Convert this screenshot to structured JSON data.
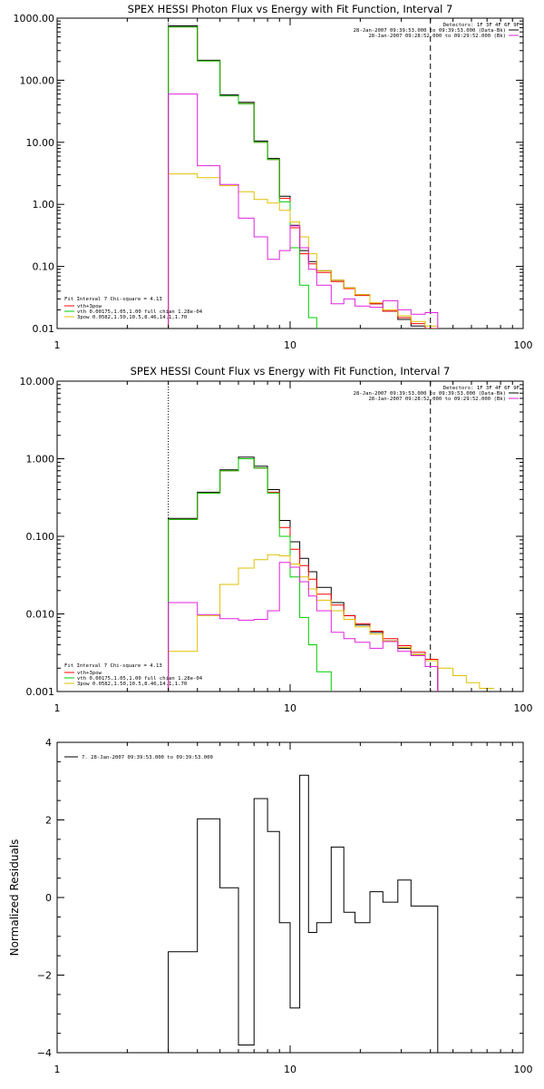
{
  "chart_data": [
    {
      "type": "line",
      "scale": "log-log",
      "title": "SPEX HESSI Photon Flux vs Energy with Fit Function, Interval 7",
      "xlim": [
        1,
        100
      ],
      "ylim": [
        0.01,
        1000
      ],
      "x_ticks": [
        "1",
        "10",
        "100"
      ],
      "y_ticks": [
        "0.01",
        "0.10",
        "1.00",
        "10.00",
        "100.00",
        "1000.00"
      ],
      "vlines": {
        "dotted": 3,
        "dashed": 40
      },
      "header_lines": [
        "Detectors: 1F 3F 4F 6F 9F",
        "28-Jan-2007 09:39:53.000 to 09:39:53.000 (Data-Bk)",
        "28-Jan-2007 09:28:52.000 to 09:29:52.000 (Bk)"
      ],
      "fit_lines": [
        "Fit Interval 7   Chi-square = 4.13",
        "vth+3pow",
        "vth 0.00175,1.05,1.00  full chian 1.28e-04",
        "3pow 0.0582,1.50,10.5,8.46,14.1,1.70"
      ],
      "edges": [
        3,
        4,
        5,
        6,
        7,
        8,
        9,
        10,
        11,
        12,
        13,
        15,
        17,
        19,
        22,
        25,
        29,
        33,
        38,
        43,
        50
      ],
      "series": [
        {
          "key": "data",
          "color": "#000000",
          "values": [
            750,
            210,
            58,
            44,
            10.5,
            5.5,
            1.35,
            0.46,
            0.18,
            0.12,
            0.085,
            0.06,
            0.045,
            0.035,
            0.025,
            0.019,
            0.014,
            0.011,
            0.009,
            null
          ]
        },
        {
          "key": "total",
          "color": "#ff0000",
          "values": [
            720,
            205,
            56,
            42,
            10,
            5.3,
            1.25,
            0.42,
            0.16,
            0.11,
            0.08,
            0.057,
            0.044,
            0.034,
            0.025,
            0.019,
            0.015,
            0.012,
            0.01,
            null
          ]
        },
        {
          "key": "vth",
          "color": "#00cc00",
          "values": [
            720,
            205,
            56,
            42,
            10,
            5.3,
            1.1,
            0.2,
            0.05,
            0.015,
            null,
            null,
            null,
            null,
            null,
            null,
            null,
            null,
            null,
            null
          ]
        },
        {
          "key": "3pow",
          "color": "#e0c000",
          "values": [
            3.1,
            2.7,
            2.0,
            1.6,
            1.2,
            1.05,
            0.8,
            0.52,
            0.3,
            0.16,
            0.085,
            0.06,
            0.045,
            0.035,
            0.026,
            0.02,
            0.016,
            0.013,
            0.011,
            0.009
          ]
        },
        {
          "key": "bk",
          "color": "#e020e0",
          "values": [
            60,
            4.2,
            2.1,
            0.6,
            0.3,
            0.13,
            0.18,
            0.45,
            0.2,
            0.09,
            0.05,
            0.025,
            0.03,
            0.023,
            0.022,
            0.028,
            0.02,
            0.017,
            0.018,
            null
          ]
        }
      ]
    },
    {
      "type": "line",
      "scale": "log-log",
      "title": "SPEX HESSI Count Flux vs Energy with Fit Function, Interval 7",
      "xlim": [
        1,
        100
      ],
      "ylim": [
        0.001,
        10
      ],
      "x_ticks": [
        "1",
        "10",
        "100"
      ],
      "y_ticks": [
        "0.001",
        "0.010",
        "0.100",
        "1.000",
        "10.000"
      ],
      "vlines": {
        "dotted": 3,
        "dashed": 40
      },
      "header_lines": [
        "Detectors: 1F 3F 4F 6F 9F",
        "28-Jan-2007 09:39:53.000 to 09:39:53.000 (Data-Bk)",
        "28-Jan-2007 09:28:52.000 to 09:29:52.000 (Bk)"
      ],
      "fit_lines": [
        "Fit Interval 7   Chi-square = 4.13",
        "vth+3pow",
        "vth 0.00175,1.05,1.00  full chian 1.28e-04",
        "3pow 0.0582,1.50,10.5,8.46,14.1,1.70"
      ],
      "edges": [
        3,
        4,
        5,
        6,
        7,
        8,
        9,
        10,
        11,
        12,
        13,
        15,
        17,
        19,
        22,
        25,
        29,
        33,
        38,
        43,
        50,
        57,
        65,
        75
      ],
      "series": [
        {
          "key": "data",
          "color": "#000000",
          "values": [
            0.17,
            0.37,
            0.72,
            1.05,
            0.8,
            0.4,
            0.16,
            0.085,
            0.052,
            0.035,
            0.022,
            0.014,
            0.0095,
            0.0072,
            0.0058,
            0.0045,
            0.0036,
            0.003,
            0.0025,
            null,
            null,
            null,
            null
          ]
        },
        {
          "key": "total",
          "color": "#ff0000",
          "values": [
            0.165,
            0.36,
            0.7,
            1.0,
            0.76,
            0.37,
            0.13,
            0.068,
            0.042,
            0.028,
            0.018,
            0.013,
            0.0095,
            0.0075,
            0.006,
            0.0048,
            0.0039,
            0.0032,
            0.0026,
            null,
            null,
            null,
            null
          ]
        },
        {
          "key": "vth",
          "color": "#00cc00",
          "values": [
            0.165,
            0.36,
            0.7,
            1.0,
            0.76,
            0.36,
            0.1,
            0.03,
            0.009,
            0.004,
            0.0018,
            null,
            null,
            null,
            null,
            null,
            null,
            null,
            null,
            null,
            null,
            null,
            null
          ]
        },
        {
          "key": "3pow",
          "color": "#e0c000",
          "values": [
            0.0033,
            0.0095,
            0.024,
            0.039,
            0.05,
            0.058,
            0.056,
            0.044,
            0.03,
            0.021,
            0.015,
            0.011,
            0.0085,
            0.0068,
            0.0055,
            0.0045,
            0.0037,
            0.003,
            0.0025,
            0.002,
            0.0016,
            0.0013,
            0.0011
          ]
        },
        {
          "key": "bk",
          "color": "#e020e0",
          "values": [
            0.014,
            0.0098,
            0.0087,
            0.0083,
            0.0085,
            0.011,
            0.046,
            0.04,
            0.026,
            0.017,
            0.011,
            0.0058,
            0.0048,
            0.0043,
            0.0036,
            0.0044,
            0.0033,
            0.0029,
            0.0021,
            null,
            null,
            null,
            null
          ]
        }
      ]
    },
    {
      "type": "line",
      "scale": "log-linear",
      "title": "",
      "ylabel": "Normalized Residuals",
      "xlim": [
        1,
        100
      ],
      "ylim": [
        -4,
        4
      ],
      "x_ticks": [
        "1",
        "10",
        "100"
      ],
      "y_ticks": [
        "4",
        "2",
        "0",
        "−2",
        "−4"
      ],
      "legend": "7. 28-Jan-2007 09:39:53.000 to 09:39:53.000",
      "edges": [
        3,
        4,
        5,
        6,
        7,
        8,
        9,
        10,
        11,
        12,
        13,
        15,
        17,
        19,
        22,
        25,
        29,
        33,
        38,
        43
      ],
      "series": [
        {
          "key": "residuals",
          "color": "#000000",
          "values": [
            -1.4,
            2.03,
            0.25,
            -3.8,
            2.55,
            1.7,
            -0.65,
            -2.85,
            3.15,
            -0.9,
            -0.65,
            1.3,
            -0.38,
            -0.65,
            0.15,
            -0.12,
            0.45,
            -0.22,
            -0.22
          ]
        }
      ]
    }
  ]
}
